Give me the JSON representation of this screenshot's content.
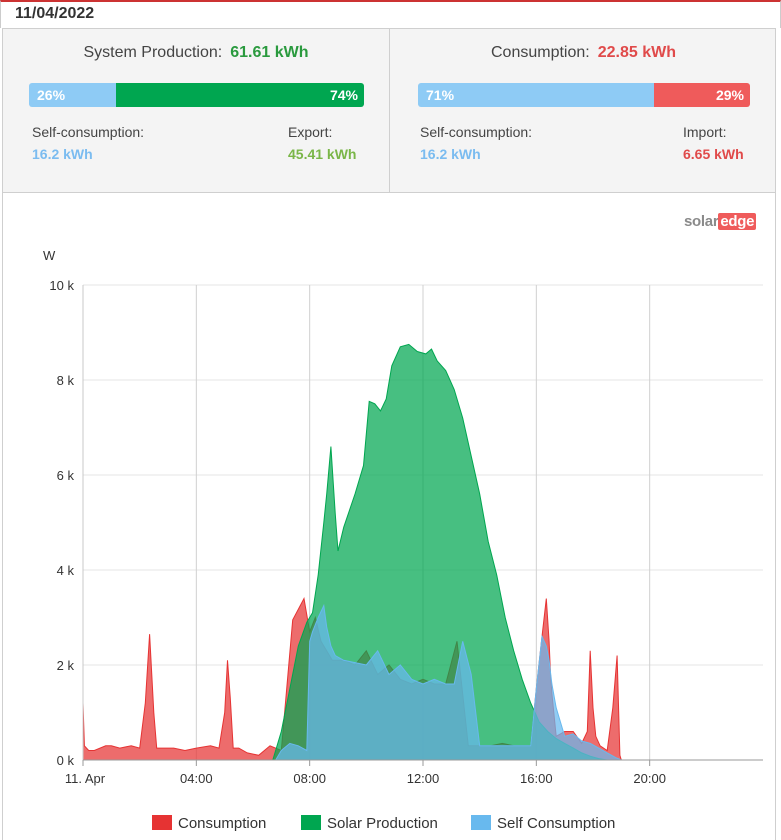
{
  "header": {
    "date": "11/04/2022"
  },
  "production": {
    "label": "System Production:",
    "value": "61.61 kWh",
    "bar": {
      "self_pct": 26,
      "export_pct": 74,
      "self_label": "26%",
      "export_label": "74%"
    },
    "self_consumption": {
      "label": "Self-consumption:",
      "value": "16.2 kWh"
    },
    "export": {
      "label": "Export:",
      "value": "45.41 kWh"
    }
  },
  "consumption": {
    "label": "Consumption:",
    "value": "22.85 kWh",
    "bar": {
      "self_pct": 71,
      "import_pct": 29,
      "self_label": "71%",
      "import_label": "29%"
    },
    "self_consumption": {
      "label": "Self-consumption:",
      "value": "16.2 kWh"
    },
    "import": {
      "label": "Import:",
      "value": "6.65 kWh"
    }
  },
  "logo": {
    "solar": "solar",
    "edge": "edge"
  },
  "colors": {
    "consumption": "#e63333",
    "solar_production": "#00a650",
    "self_consumption": "#68b9ee",
    "green_text": "#2a9a3e",
    "red_text": "#e04a4a",
    "blue_text": "#7bbcf0"
  },
  "chart_data": {
    "type": "area",
    "ylabel": "W",
    "ylim": [
      0,
      10000
    ],
    "xlim": [
      0,
      24
    ],
    "x_unit": "hour",
    "y_ticks": [
      0,
      2000,
      4000,
      6000,
      8000,
      10000
    ],
    "y_tick_labels": [
      "0 k",
      "2 k",
      "4 k",
      "6 k",
      "8 k",
      "10 k"
    ],
    "x_ticks": [
      0,
      4,
      8,
      12,
      16,
      20
    ],
    "x_tick_labels": [
      "11. Apr",
      "04:00",
      "08:00",
      "12:00",
      "16:00",
      "20:00"
    ],
    "legend_position": "bottom",
    "series": [
      {
        "name": "Consumption",
        "color": "#e63333",
        "x": [
          0,
          0.05,
          0.2,
          0.4,
          0.8,
          1.0,
          1.3,
          1.7,
          2.0,
          2.2,
          2.35,
          2.5,
          2.6,
          2.8,
          3.2,
          3.6,
          4.0,
          4.5,
          4.8,
          5.0,
          5.1,
          5.2,
          5.3,
          5.5,
          5.8,
          6.2,
          6.6,
          7.0,
          7.4,
          7.8,
          8.0,
          8.2,
          8.4,
          8.8,
          9.2,
          9.6,
          10.0,
          10.4,
          10.8,
          11.2,
          11.6,
          12.0,
          12.4,
          12.8,
          13.2,
          13.6,
          14.0,
          14.4,
          14.8,
          15.2,
          15.5,
          15.8,
          16.0,
          16.2,
          16.35,
          16.45,
          16.5,
          16.55,
          16.7,
          17.0,
          17.3,
          17.6,
          17.8,
          17.9,
          18.0,
          18.1,
          18.25,
          18.5,
          18.7,
          18.85,
          18.95,
          19.0
        ],
        "y": [
          1200,
          300,
          200,
          200,
          300,
          300,
          250,
          300,
          250,
          1200,
          2650,
          1000,
          250,
          250,
          250,
          200,
          250,
          300,
          250,
          1000,
          2100,
          1300,
          250,
          250,
          150,
          100,
          300,
          200,
          2950,
          3400,
          2700,
          3000,
          2500,
          2100,
          2100,
          2000,
          2300,
          1800,
          2000,
          1700,
          1600,
          1700,
          1600,
          1600,
          2500,
          300,
          300,
          300,
          350,
          300,
          300,
          300,
          1500,
          2600,
          3400,
          2500,
          1800,
          1400,
          500,
          600,
          600,
          350,
          600,
          2300,
          1100,
          500,
          300,
          200,
          1100,
          2200,
          100,
          0
        ]
      },
      {
        "name": "Solar Production",
        "color": "#00a650",
        "x": [
          0,
          6.7,
          7.0,
          7.3,
          7.6,
          7.9,
          8.1,
          8.3,
          8.5,
          8.6,
          8.75,
          8.9,
          9.0,
          9.2,
          9.6,
          9.9,
          10.1,
          10.3,
          10.5,
          10.7,
          10.9,
          11.2,
          11.5,
          11.8,
          12.1,
          12.3,
          12.5,
          12.8,
          13.1,
          13.4,
          13.7,
          14.0,
          14.3,
          14.6,
          14.9,
          15.2,
          15.5,
          15.8,
          16.1,
          16.4,
          16.7,
          17.0,
          17.3,
          17.6,
          17.9,
          18.2,
          18.5,
          18.8,
          19.0
        ],
        "y": [
          0,
          0,
          600,
          1500,
          2400,
          2900,
          3100,
          3900,
          5000,
          5600,
          6600,
          5200,
          4400,
          4900,
          5600,
          6200,
          7550,
          7500,
          7350,
          7600,
          8300,
          8700,
          8750,
          8600,
          8550,
          8650,
          8400,
          8200,
          7800,
          7200,
          6400,
          5600,
          4600,
          3900,
          3000,
          2300,
          1700,
          1200,
          800,
          600,
          450,
          350,
          250,
          150,
          80,
          30,
          0,
          0,
          0
        ]
      },
      {
        "name": "Self Consumption",
        "color": "#68b9ee",
        "x": [
          0,
          6.8,
          7.0,
          7.3,
          7.6,
          7.9,
          8.0,
          8.1,
          8.3,
          8.5,
          8.6,
          8.75,
          8.9,
          9.2,
          9.6,
          10.0,
          10.4,
          10.8,
          11.2,
          11.6,
          12.0,
          12.4,
          12.8,
          13.1,
          13.4,
          13.7,
          14.0,
          14.4,
          14.8,
          15.2,
          15.5,
          15.8,
          16.0,
          16.2,
          16.35,
          16.45,
          16.55,
          16.7,
          17.0,
          17.3,
          17.6,
          17.9,
          18.2,
          18.5,
          18.8,
          19.0
        ],
        "y": [
          0,
          0,
          200,
          350,
          300,
          200,
          2500,
          2700,
          3000,
          3250,
          2800,
          2400,
          2200,
          2100,
          2050,
          2000,
          2300,
          1800,
          2000,
          1700,
          1600,
          1700,
          1600,
          1600,
          2500,
          1800,
          300,
          300,
          300,
          300,
          300,
          300,
          1500,
          2600,
          2400,
          2100,
          1600,
          1100,
          500,
          550,
          400,
          350,
          250,
          150,
          50,
          0
        ]
      }
    ]
  }
}
